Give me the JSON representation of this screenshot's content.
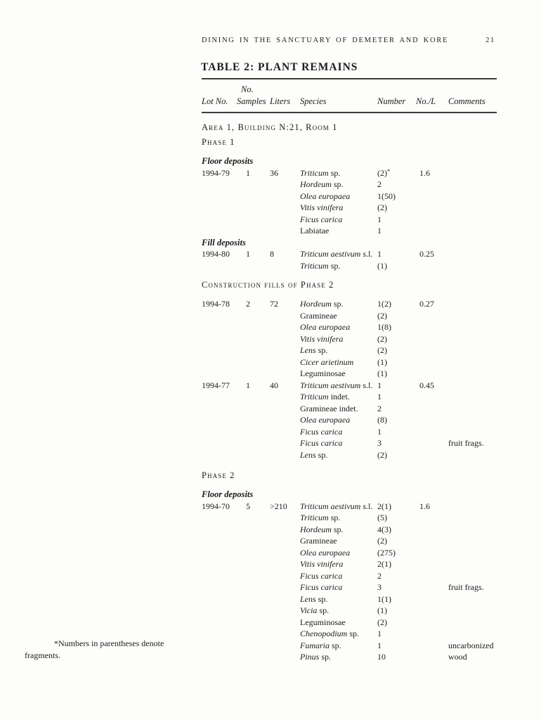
{
  "page": {
    "running_head": "DINING IN THE SANCTUARY OF DEMETER AND KORE",
    "page_number": "21"
  },
  "table": {
    "title": "TABLE 2: PLANT REMAINS",
    "header": {
      "no_label": "No.",
      "lot": "Lot No.",
      "samples": "Samples",
      "liters": "Liters",
      "species": "Species",
      "number": "Number",
      "nol": "No./L",
      "comments": "Comments"
    },
    "blocks": [
      {
        "type": "area",
        "text": "Area 1, Building N:21, Room 1"
      },
      {
        "type": "phase",
        "text": "Phase 1"
      },
      {
        "type": "group",
        "text": "Floor deposits"
      },
      {
        "type": "row",
        "lot": "1994-79",
        "samples": "1",
        "liters": "36",
        "species_italic": "Triticum",
        "species_roman": " sp.",
        "number": "(2)",
        "number_sup": "*",
        "no_l": "1.6",
        "comments": ""
      },
      {
        "type": "row",
        "species_italic": "Hordeum",
        "species_roman": " sp.",
        "number": "2"
      },
      {
        "type": "row",
        "species_italic": "Olea europaea",
        "number": "1(50)"
      },
      {
        "type": "row",
        "species_italic": "Vitis vinifera",
        "number": "(2)"
      },
      {
        "type": "row",
        "species_italic": "Ficus carica",
        "number": "1"
      },
      {
        "type": "row",
        "species_roman": "Labiatae",
        "number": "1"
      },
      {
        "type": "group",
        "text": "Fill deposits"
      },
      {
        "type": "row",
        "lot": "1994-80",
        "samples": "1",
        "liters": "8",
        "species_italic": "Triticum aestivum",
        "species_roman": " s.l.",
        "number": "1",
        "no_l": "0.25"
      },
      {
        "type": "row",
        "species_italic": "Triticum",
        "species_roman": " sp.",
        "number": "(1)"
      },
      {
        "type": "section",
        "text": "Construction fills of Phase 2"
      },
      {
        "type": "row",
        "lot": "1994-78",
        "samples": "2",
        "liters": "72",
        "species_italic": "Hordeum",
        "species_roman": " sp.",
        "number": "1(2)",
        "no_l": "0.27"
      },
      {
        "type": "row",
        "species_roman": "Gramineae",
        "number": "(2)"
      },
      {
        "type": "row",
        "species_italic": "Olea europaea",
        "number": "1(8)"
      },
      {
        "type": "row",
        "species_italic": "Vitis vinifera",
        "number": "(2)"
      },
      {
        "type": "row",
        "species_italic": "Lens",
        "species_roman": " sp.",
        "number": "(2)"
      },
      {
        "type": "row",
        "species_italic": "Cicer arietinum",
        "number": "(1)"
      },
      {
        "type": "row",
        "species_roman": "Leguminosae",
        "number": "(1)"
      },
      {
        "type": "row",
        "lot": "1994-77",
        "samples": "1",
        "liters": "40",
        "species_italic": "Triticum aestivum",
        "species_roman": " s.l.",
        "number": "1",
        "no_l": "0.45"
      },
      {
        "type": "row",
        "species_italic": "Triticum",
        "species_roman": " indet.",
        "number": "1"
      },
      {
        "type": "row",
        "species_roman": "Gramineae indet.",
        "number": "2"
      },
      {
        "type": "row",
        "species_italic": "Olea europaea",
        "number": "(8)"
      },
      {
        "type": "row",
        "species_italic": "Ficus carica",
        "number": "1"
      },
      {
        "type": "row",
        "species_italic": "Ficus carica",
        "number": "3",
        "comments": "fruit frags."
      },
      {
        "type": "row",
        "species_italic": "Lens",
        "species_roman": " sp.",
        "number": "(2)"
      },
      {
        "type": "phase",
        "text": "Phase 2"
      },
      {
        "type": "group",
        "text": "Floor deposits"
      },
      {
        "type": "row",
        "lot": "1994-70",
        "samples": "5",
        "liters": ">210",
        "species_italic": "Triticum aestivum",
        "species_roman": " s.l.",
        "number": "2(1)",
        "no_l": "1.6"
      },
      {
        "type": "row",
        "species_italic": "Triticum",
        "species_roman": " sp.",
        "number": "(5)"
      },
      {
        "type": "row",
        "species_italic": "Hordeum",
        "species_roman": " sp.",
        "number": "4(3)"
      },
      {
        "type": "row",
        "species_roman": "Gramineae",
        "number": "(2)"
      },
      {
        "type": "row",
        "species_italic": "Olea europaea",
        "number": "(275)"
      },
      {
        "type": "row",
        "species_italic": "Vitis vinifera",
        "number": "2(1)"
      },
      {
        "type": "row",
        "species_italic": "Ficus carica",
        "number": "2"
      },
      {
        "type": "row",
        "species_italic": "Ficus carica",
        "number": "3",
        "comments": "fruit frags."
      },
      {
        "type": "row",
        "species_italic": "Lens",
        "species_roman": " sp.",
        "number": "1(1)"
      },
      {
        "type": "row",
        "species_italic": "Vicia",
        "species_roman": " sp.",
        "number": "(1)"
      },
      {
        "type": "row",
        "species_roman": "Leguminosae",
        "number": "(2)"
      },
      {
        "type": "row",
        "species_italic": "Chenopodium",
        "species_roman": " sp.",
        "number": "1"
      },
      {
        "type": "row",
        "species_italic": "Fumaria",
        "species_roman": " sp.",
        "number": "1",
        "comments": "uncarbonized"
      },
      {
        "type": "row",
        "species_italic": "Pinus",
        "species_roman": " sp.",
        "number": "10",
        "comments": "wood"
      }
    ]
  },
  "footnote": {
    "line1": "*Numbers in parentheses denote",
    "line2": "fragments."
  }
}
